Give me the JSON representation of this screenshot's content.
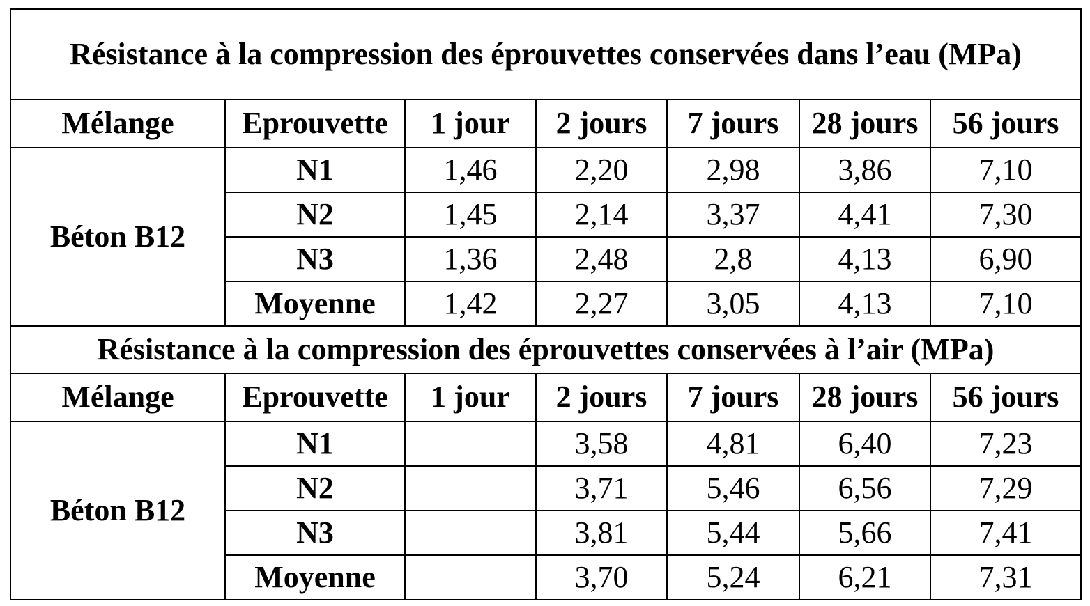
{
  "table": {
    "sections": [
      {
        "title": "Résistance à la compression des éprouvettes conservées dans l’eau (MPa)",
        "headers": [
          "Mélange",
          "Eprouvette",
          "1 jour",
          "2 jours",
          "7 jours",
          "28 jours",
          "56 jours"
        ],
        "melange": "Béton B12",
        "rows": [
          {
            "label": "N1",
            "values": [
              "1,46",
              "2,20",
              "2,98",
              "3,86",
              "7,10"
            ]
          },
          {
            "label": "N2",
            "values": [
              "1,45",
              "2,14",
              "3,37",
              "4,41",
              "7,30"
            ]
          },
          {
            "label": "N3",
            "values": [
              "1,36",
              "2,48",
              "2,8",
              "4,13",
              "6,90"
            ]
          },
          {
            "label": "Moyenne",
            "values": [
              "1,42",
              "2,27",
              "3,05",
              "4,13",
              "7,10"
            ]
          }
        ]
      },
      {
        "title": "Résistance à la compression des éprouvettes conservées à l’air (MPa)",
        "headers": [
          "Mélange",
          "Eprouvette",
          "1 jour",
          "2 jours",
          "7 jours",
          "28 jours",
          "56 jours"
        ],
        "melange": "Béton B12",
        "rows": [
          {
            "label": "N1",
            "values": [
              "",
              "3,58",
              "4,81",
              "6,40",
              "7,23"
            ]
          },
          {
            "label": "N2",
            "values": [
              "",
              "3,71",
              "5,46",
              "6,56",
              "7,29"
            ]
          },
          {
            "label": "N3",
            "values": [
              "",
              "3,81",
              "5,44",
              "5,66",
              "7,41"
            ]
          },
          {
            "label": "Moyenne",
            "values": [
              "",
              "3,70",
              "5,24",
              "6,21",
              "7,31"
            ]
          }
        ]
      }
    ]
  }
}
